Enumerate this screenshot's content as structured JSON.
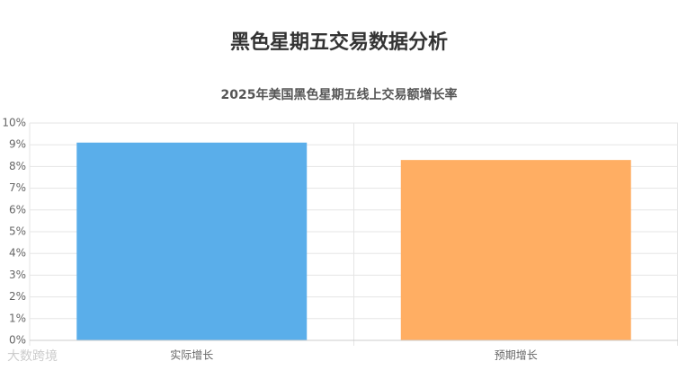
{
  "chart_data": {
    "type": "bar",
    "title": "黑色星期五交易数据分析",
    "subtitle": "2025年美国黑色星期五线上交易额增长率",
    "categories": [
      "实际增长",
      "预期增长"
    ],
    "values": [
      9.1,
      8.3
    ],
    "colors": [
      "#5aaeea",
      "#ffae63"
    ],
    "ylim": [
      0,
      10
    ],
    "yticks": [
      {
        "value": 0,
        "label": "0%"
      },
      {
        "value": 1,
        "label": "1%"
      },
      {
        "value": 2,
        "label": "2%"
      },
      {
        "value": 3,
        "label": "3%"
      },
      {
        "value": 4,
        "label": "4%"
      },
      {
        "value": 5,
        "label": "5%"
      },
      {
        "value": 6,
        "label": "6%"
      },
      {
        "value": 7,
        "label": "7%"
      },
      {
        "value": 8,
        "label": "8%"
      },
      {
        "value": 9,
        "label": "9%"
      },
      {
        "value": 10,
        "label": "10%"
      }
    ],
    "grid": true,
    "watermark": "大数跨境"
  }
}
